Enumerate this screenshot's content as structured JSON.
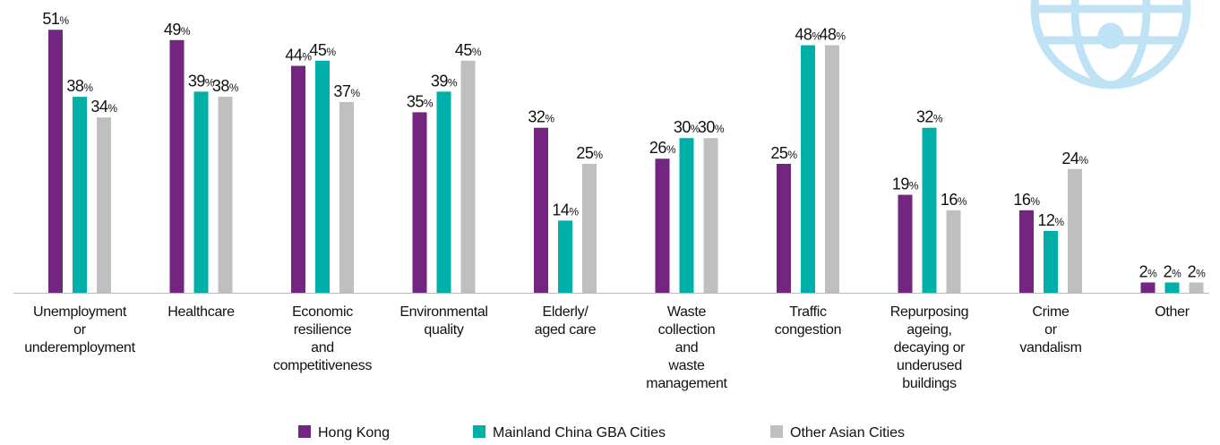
{
  "chart_data": {
    "type": "bar",
    "categories": [
      "Unemployment\nor\nunderemployment",
      "Healthcare",
      "Economic\nresilience\nand\ncompetitiveness",
      "Environmental\nquality",
      "Elderly/\naged care",
      "Waste\ncollection\nand\nwaste\nmanagement",
      "Traffic\ncongestion",
      "Repurposing\nageing,\ndecaying or\nunderused\nbuildings",
      "Crime\nor\nvandalism",
      "Other"
    ],
    "series": [
      {
        "name": "Hong Kong",
        "color": "#72267f",
        "values": [
          51,
          49,
          44,
          35,
          32,
          26,
          25,
          19,
          16,
          2
        ],
        "value_labels": [
          "51%",
          "49%",
          "44%",
          "35%",
          "32%",
          "26%",
          "25%",
          "19%",
          "16%",
          "2%"
        ]
      },
      {
        "name": "Mainland China GBA Cities",
        "color": "#00b0a8",
        "values": [
          38,
          39,
          45,
          39,
          14,
          30,
          48,
          32,
          12,
          2
        ],
        "value_labels": [
          "38%",
          "39%",
          "45%",
          "39%",
          "14%",
          "30%",
          "48%",
          "32%",
          "12%",
          "2%"
        ]
      },
      {
        "name": "Other Asian Cities",
        "color": "#bfbfbf",
        "values": [
          34,
          38,
          37,
          45,
          25,
          30,
          48,
          16,
          24,
          2
        ],
        "value_labels": [
          "34%",
          "38%",
          "37%",
          "45%",
          "25%",
          "30%",
          "48%",
          "16%",
          "24%",
          "2%"
        ]
      }
    ]
  }
}
